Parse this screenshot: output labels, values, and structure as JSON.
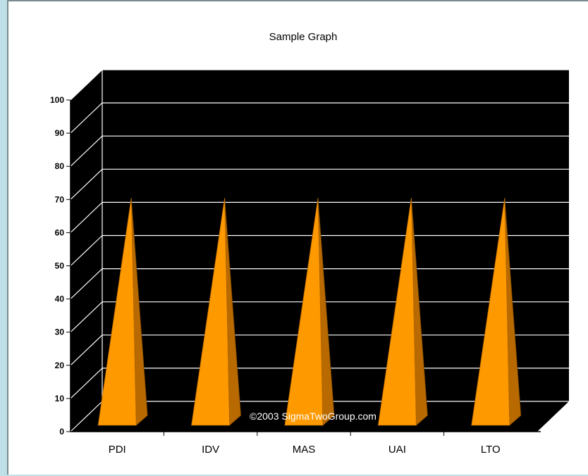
{
  "chart_data": {
    "type": "bar",
    "title": "Sample Graph",
    "xlabel": "",
    "ylabel": "",
    "categories": [
      "PDI",
      "IDV",
      "MAS",
      "UAI",
      "LTO"
    ],
    "values": [
      70,
      70,
      70,
      70,
      70
    ],
    "ylim": [
      0,
      100
    ],
    "yticks": [
      "0",
      "10",
      "20",
      "30",
      "40",
      "50",
      "60",
      "70",
      "80",
      "90",
      "100"
    ],
    "grid": true,
    "bar_shape": "pyramid",
    "bar_color": "#ff9900",
    "plot_background": "#000000",
    "watermark": "©2003 SigmaTwoGroup.com"
  }
}
